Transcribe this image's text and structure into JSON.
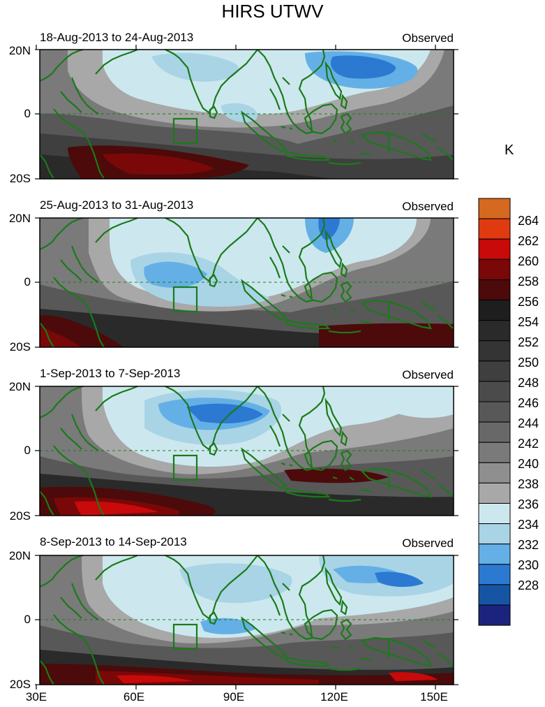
{
  "title": "HIRS UTWV",
  "panels": [
    {
      "period": "18-Aug-2013 to 24-Aug-2013",
      "tag": "Observed"
    },
    {
      "period": "25-Aug-2013 to 31-Aug-2013",
      "tag": "Observed"
    },
    {
      "period": "1-Sep-2013 to 7-Sep-2013",
      "tag": "Observed"
    },
    {
      "period": "8-Sep-2013 to 14-Sep-2013",
      "tag": "Observed"
    }
  ],
  "lat_labels": [
    "20N",
    "0",
    "20S"
  ],
  "lon_labels": [
    "30E",
    "60E",
    "90E",
    "120E",
    "150E"
  ],
  "colorbar": {
    "unit": "K",
    "labels": [
      "264",
      "262",
      "260",
      "258",
      "256",
      "254",
      "252",
      "250",
      "248",
      "246",
      "244",
      "242",
      "240",
      "238",
      "236",
      "234",
      "232",
      "230",
      "228"
    ],
    "colors": [
      "#d4691f",
      "#e03a10",
      "#c80a0a",
      "#7a0808",
      "#4d0a0a",
      "#1e1e1e",
      "#2a2a2a",
      "#343434",
      "#3f3f3f",
      "#4b4b4b",
      "#585858",
      "#686868",
      "#7a7a7a",
      "#8f8f8f",
      "#a8a8a8",
      "#cce8ee",
      "#a9d4e6",
      "#64b0e6",
      "#2c79d2",
      "#1655a3",
      "#1c237e"
    ]
  },
  "coast_color": "#1a7a1a"
}
